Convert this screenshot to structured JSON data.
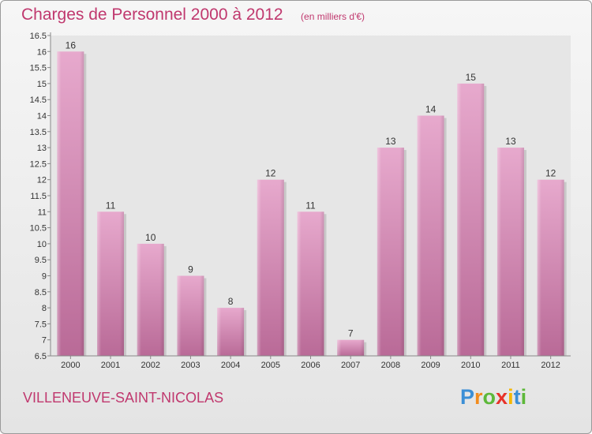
{
  "chart_data": {
    "type": "bar",
    "title": "Charges de Personnel 2000 à 2012",
    "subtitle": "(en milliers d'€)",
    "categories": [
      "2000",
      "2001",
      "2002",
      "2003",
      "2004",
      "2005",
      "2006",
      "2007",
      "2008",
      "2009",
      "2010",
      "2011",
      "2012"
    ],
    "values": [
      16,
      11,
      10,
      9,
      8,
      12,
      11,
      7,
      13,
      14,
      15,
      13,
      12
    ],
    "ylim": [
      6.5,
      16.5
    ],
    "yticks": [
      "6.5",
      "7",
      "7.5",
      "8",
      "8.5",
      "9",
      "9.5",
      "10",
      "10.5",
      "11",
      "11.5",
      "12",
      "12.5",
      "13",
      "13.5",
      "14",
      "14.5",
      "15",
      "15.5",
      "16",
      "16.5"
    ],
    "xlabel": "",
    "ylabel": "",
    "grid": false,
    "bar_color": "#d98ab7"
  },
  "footer": {
    "city": "VILLENEUVE-SAINT-NICOLAS",
    "logo_letters": [
      {
        "ch": "P",
        "color": "#3b8fd6"
      },
      {
        "ch": "r",
        "color": "#f28c1e"
      },
      {
        "ch": "o",
        "color": "#5db83a"
      },
      {
        "ch": "x",
        "color": "#e8332a"
      },
      {
        "ch": "i",
        "color": "#f5b700"
      },
      {
        "ch": "t",
        "color": "#3b8fd6"
      },
      {
        "ch": "i",
        "color": "#5db83a"
      }
    ]
  }
}
